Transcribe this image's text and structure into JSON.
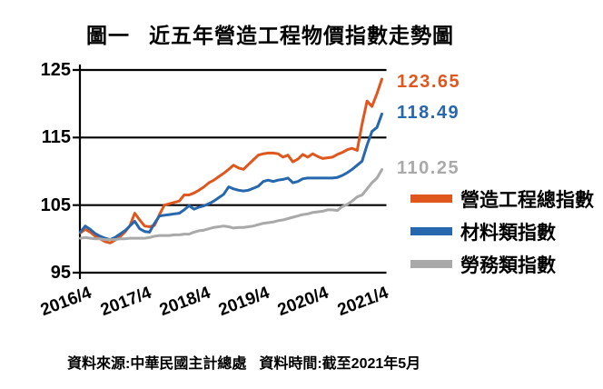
{
  "title": {
    "prefix": "圖一",
    "text": "近五年營造工程物價指數走勢圖"
  },
  "footer": {
    "source": "資料來源:中華民國主計總處",
    "time": "資料時間:截至2021年5月"
  },
  "chart_data": {
    "type": "line",
    "title": "近五年營造工程物價指數走勢圖",
    "x_monthly_from": "2016/4",
    "x_monthly_to": "2021/5",
    "x_tick_labels": [
      "2016/4",
      "2017/4",
      "2018/4",
      "2019/4",
      "2020/4",
      "2021/4"
    ],
    "y_tick_labels": [
      "125",
      "115",
      "105",
      "95"
    ],
    "ylim": [
      95,
      125
    ],
    "grid": "horizontal-black",
    "legend_position": "right",
    "series": [
      {
        "name": "營造工程總指數",
        "color": "#E0571D",
        "end_label": "123.65",
        "values": [
          100.9,
          101.4,
          101.0,
          100.4,
          100.0,
          99.6,
          99.4,
          99.8,
          100.3,
          101.0,
          101.9,
          103.8,
          102.8,
          101.9,
          101.8,
          102.0,
          103.6,
          105.0,
          105.2,
          105.4,
          105.6,
          106.5,
          106.5,
          106.8,
          107.2,
          107.7,
          108.3,
          108.7,
          109.2,
          109.7,
          110.3,
          110.9,
          110.5,
          110.3,
          111.0,
          111.7,
          112.4,
          112.6,
          112.7,
          112.7,
          112.6,
          112.1,
          112.4,
          111.4,
          111.8,
          112.5,
          112.1,
          112.6,
          112.2,
          111.9,
          112.0,
          112.1,
          112.5,
          112.8,
          113.2,
          113.4,
          113.1,
          117.0,
          120.4,
          119.6,
          121.5,
          123.65
        ]
      },
      {
        "name": "材料類指數",
        "color": "#2667AE",
        "end_label": "118.49",
        "values": [
          101.0,
          101.9,
          101.4,
          100.8,
          100.4,
          100.1,
          99.9,
          100.2,
          100.7,
          101.2,
          101.9,
          102.6,
          101.5,
          101.1,
          101.0,
          102.3,
          103.4,
          103.5,
          103.6,
          103.7,
          103.8,
          104.3,
          104.9,
          104.4,
          104.7,
          104.9,
          105.2,
          105.6,
          106.1,
          106.6,
          107.7,
          107.4,
          107.2,
          107.1,
          107.2,
          107.5,
          107.8,
          108.5,
          108.7,
          108.5,
          108.7,
          108.8,
          109.0,
          108.3,
          108.5,
          108.9,
          109.0,
          109.0,
          109.0,
          109.0,
          109.0,
          109.0,
          109.1,
          109.4,
          109.8,
          110.3,
          110.9,
          111.5,
          113.9,
          115.9,
          116.5,
          118.49
        ]
      },
      {
        "name": "勞務類指數",
        "color": "#A9A9A9",
        "end_label": "110.25",
        "values": [
          100.1,
          100.2,
          100.1,
          100.0,
          100.0,
          99.9,
          99.9,
          99.9,
          100.0,
          100.0,
          100.1,
          100.1,
          100.1,
          100.1,
          100.2,
          100.4,
          100.5,
          100.5,
          100.5,
          100.6,
          100.6,
          100.7,
          100.7,
          101.0,
          101.2,
          101.3,
          101.5,
          101.7,
          101.8,
          101.9,
          101.8,
          101.6,
          101.7,
          101.7,
          101.8,
          101.9,
          102.1,
          102.3,
          102.4,
          102.5,
          102.7,
          102.8,
          103.0,
          103.2,
          103.4,
          103.6,
          103.7,
          103.9,
          104.0,
          104.1,
          104.3,
          104.3,
          104.2,
          104.8,
          105.1,
          105.6,
          106.2,
          106.5,
          107.4,
          108.3,
          109.0,
          110.25
        ]
      }
    ]
  }
}
